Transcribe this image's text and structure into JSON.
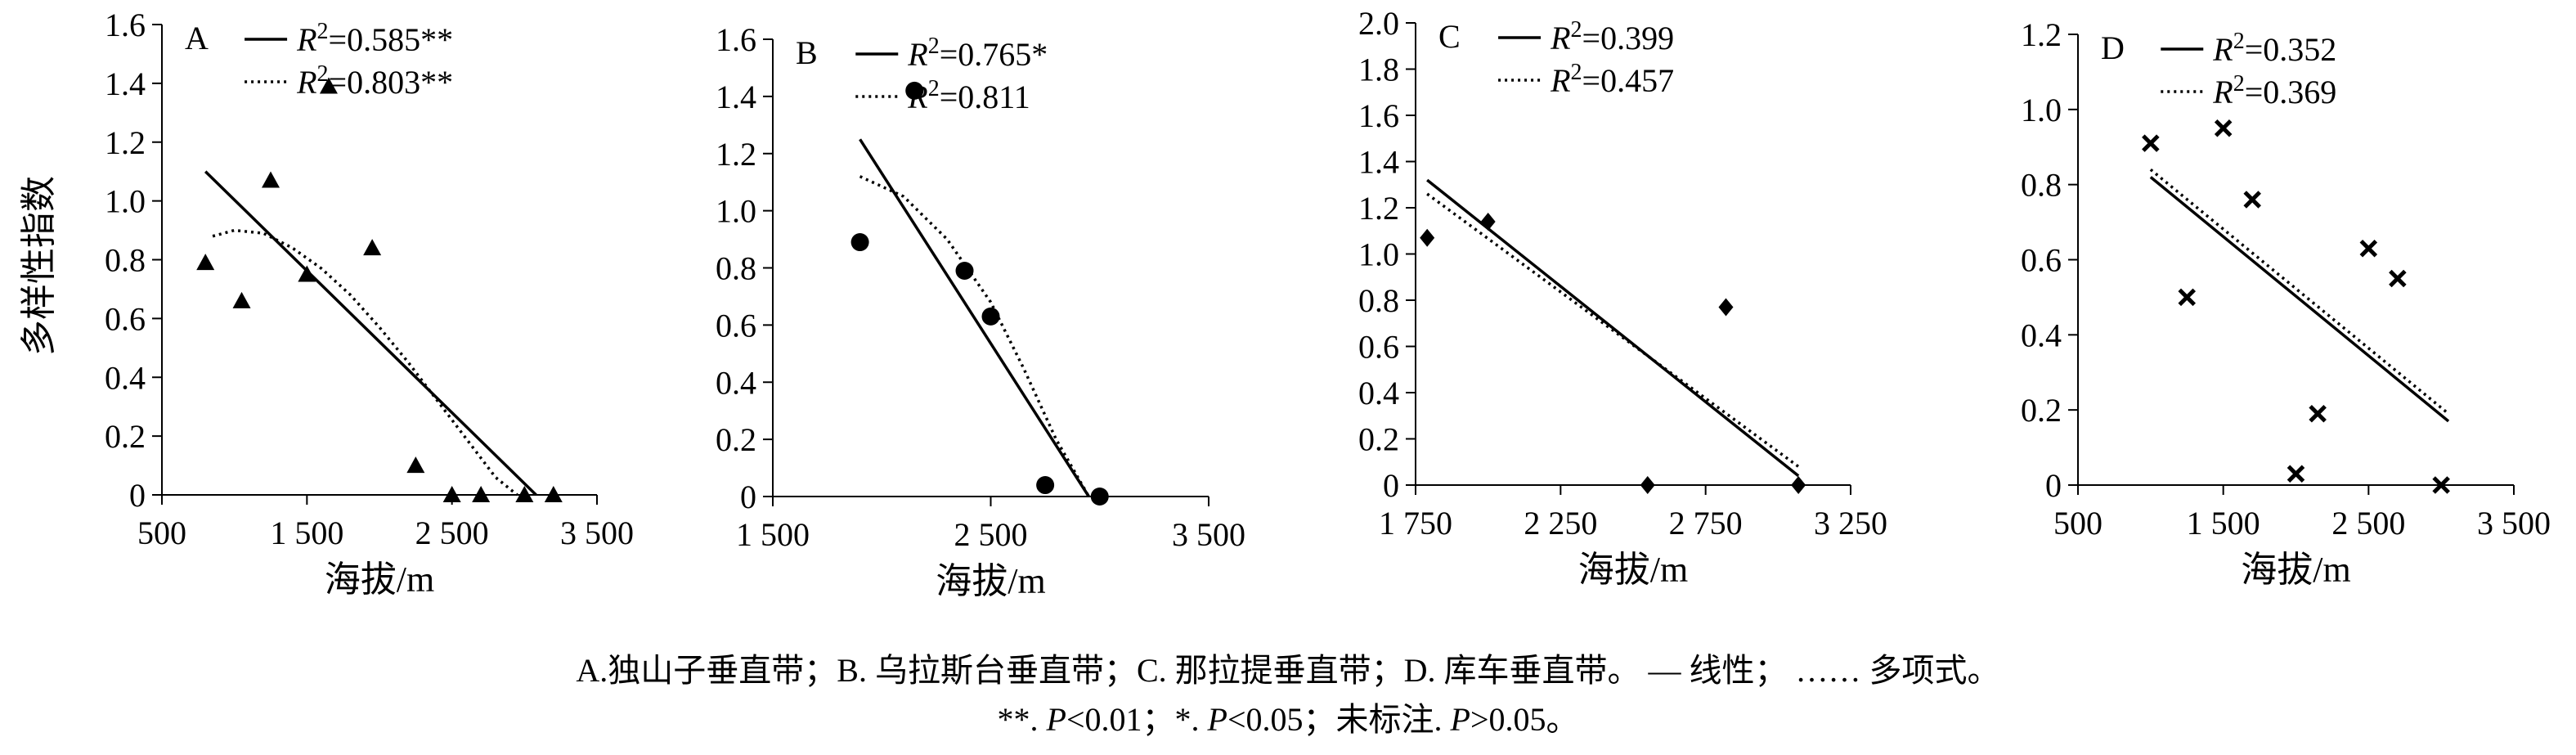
{
  "ylabel": "多样性指数",
  "caption_line1": "A.独山子垂直带；B. 乌拉斯台垂直带；C. 那拉提垂直带；D. 库车垂直带。 — 线性； …… 多项式。",
  "caption_line2": {
    "p1": "**. ",
    "v1": "P",
    "p2": "<0.01；*. ",
    "v2": "P",
    "p3": "<0.05；未标注. ",
    "v3": "P",
    "p4": ">0.05。"
  },
  "chart_data": [
    {
      "type": "scatter",
      "panel": "A",
      "marker": "triangle",
      "xlabel": "海拔/m",
      "ylabel": "多样性指数",
      "xlim": [
        500,
        3500
      ],
      "ylim": [
        0,
        1.6
      ],
      "xticks": [
        500,
        1500,
        2500,
        3500
      ],
      "xtick_labels": [
        "500",
        "1 500",
        "2 500",
        "3 500"
      ],
      "yticks": [
        0,
        0.2,
        0.4,
        0.6,
        0.8,
        1.0,
        1.2,
        1.4,
        1.6
      ],
      "ytick_labels": [
        "0",
        "0.2",
        "0.4",
        "0.6",
        "0.8",
        "1.0",
        "1.2",
        "1.4",
        "1.6"
      ],
      "x": [
        800,
        1050,
        1250,
        1500,
        1650,
        1950,
        2250,
        2500,
        2700,
        3000,
        3200
      ],
      "y": [
        0.79,
        0.66,
        1.07,
        0.75,
        1.39,
        0.84,
        0.1,
        0,
        0,
        0,
        0
      ],
      "linear_fit": {
        "x": [
          800,
          3080
        ],
        "y": [
          1.1,
          0
        ]
      },
      "poly_fit": {
        "x": [
          850,
          1000,
          1200,
          1400,
          1600,
          1800,
          2000,
          2200,
          2400,
          2600,
          2800,
          2950
        ],
        "y": [
          0.88,
          0.9,
          0.89,
          0.84,
          0.77,
          0.68,
          0.57,
          0.45,
          0.32,
          0.19,
          0.06,
          0
        ]
      },
      "legend": [
        {
          "style": "solid",
          "label_var": "R",
          "label_sup": "2",
          "label_rest": "=0.585**"
        },
        {
          "style": "dotted",
          "label_var": "R",
          "label_sup": "2",
          "label_rest": "=0.803**"
        }
      ]
    },
    {
      "type": "scatter",
      "panel": "B",
      "marker": "circle",
      "xlabel": "海拔/m",
      "xlim": [
        1500,
        3500
      ],
      "ylim": [
        0,
        1.6
      ],
      "xticks": [
        1500,
        2500,
        3500
      ],
      "xtick_labels": [
        "1 500",
        "2 500",
        "3 500"
      ],
      "yticks": [
        0,
        0.2,
        0.4,
        0.6,
        0.8,
        1.0,
        1.2,
        1.4,
        1.6
      ],
      "ytick_labels": [
        "0",
        "0.2",
        "0.4",
        "0.6",
        "0.8",
        "1.0",
        "1.2",
        "1.4",
        "1.6"
      ],
      "x": [
        1900,
        2150,
        2380,
        2500,
        2750,
        3000
      ],
      "y": [
        0.89,
        1.42,
        0.79,
        0.63,
        0.04,
        0
      ],
      "linear_fit": {
        "x": [
          1900,
          2950
        ],
        "y": [
          1.25,
          0
        ]
      },
      "poly_fit": {
        "x": [
          1900,
          2100,
          2300,
          2500,
          2650,
          2800,
          2950
        ],
        "y": [
          1.12,
          1.05,
          0.9,
          0.68,
          0.45,
          0.2,
          0
        ]
      },
      "legend": [
        {
          "style": "solid",
          "label_var": "R",
          "label_sup": "2",
          "label_rest": "=0.765*"
        },
        {
          "style": "dotted",
          "label_var": "R",
          "label_sup": "2",
          "label_rest": "=0.811"
        }
      ]
    },
    {
      "type": "scatter",
      "panel": "C",
      "marker": "diamond",
      "xlabel": "海拔/m",
      "xlim": [
        1750,
        3250
      ],
      "ylim": [
        0,
        2.0
      ],
      "xticks": [
        1750,
        2250,
        2750,
        3250
      ],
      "xtick_labels": [
        "1 750",
        "2 250",
        "2 750",
        "3 250"
      ],
      "yticks": [
        0,
        0.2,
        0.4,
        0.6,
        0.8,
        1.0,
        1.2,
        1.4,
        1.6,
        1.8,
        2.0
      ],
      "ytick_labels": [
        "0",
        "0.2",
        "0.4",
        "0.6",
        "0.8",
        "1.0",
        "1.2",
        "1.4",
        "1.6",
        "1.8",
        "2.0"
      ],
      "x": [
        1790,
        2000,
        2550,
        2820,
        3070
      ],
      "y": [
        1.07,
        1.14,
        0,
        0.77,
        0
      ],
      "linear_fit": {
        "x": [
          1790,
          3070
        ],
        "y": [
          1.32,
          0.04
        ]
      },
      "poly_fit": {
        "x": [
          1790,
          3070
        ],
        "y": [
          1.26,
          0.08
        ]
      },
      "legend": [
        {
          "style": "solid",
          "label_var": "R",
          "label_sup": "2",
          "label_rest": "=0.399"
        },
        {
          "style": "dotted",
          "label_var": "R",
          "label_sup": "2",
          "label_rest": "=0.457"
        }
      ]
    },
    {
      "type": "scatter",
      "panel": "D",
      "marker": "cross",
      "xlabel": "海拔/m",
      "xlim": [
        500,
        3500
      ],
      "ylim": [
        0,
        1.2
      ],
      "xticks": [
        500,
        1500,
        2500,
        3500
      ],
      "xtick_labels": [
        "500",
        "1 500",
        "2 500",
        "3 500"
      ],
      "yticks": [
        0,
        0.2,
        0.4,
        0.6,
        0.8,
        1.0,
        1.2
      ],
      "ytick_labels": [
        "0",
        "0.2",
        "0.4",
        "0.6",
        "0.8",
        "1.0",
        "1.2"
      ],
      "x": [
        1000,
        1250,
        1500,
        1700,
        2000,
        2150,
        2500,
        2700,
        3000
      ],
      "y": [
        0.91,
        0.5,
        0.95,
        0.76,
        0.03,
        0.19,
        0.63,
        0.55,
        0
      ],
      "linear_fit": {
        "x": [
          1000,
          3050
        ],
        "y": [
          0.82,
          0.17
        ]
      },
      "poly_fit": {
        "x": [
          1000,
          3050
        ],
        "y": [
          0.84,
          0.19
        ]
      },
      "legend": [
        {
          "style": "solid",
          "label_var": "R",
          "label_sup": "2",
          "label_rest": "=0.352"
        },
        {
          "style": "dotted",
          "label_var": "R",
          "label_sup": "2",
          "label_rest": "=0.369"
        }
      ]
    }
  ]
}
